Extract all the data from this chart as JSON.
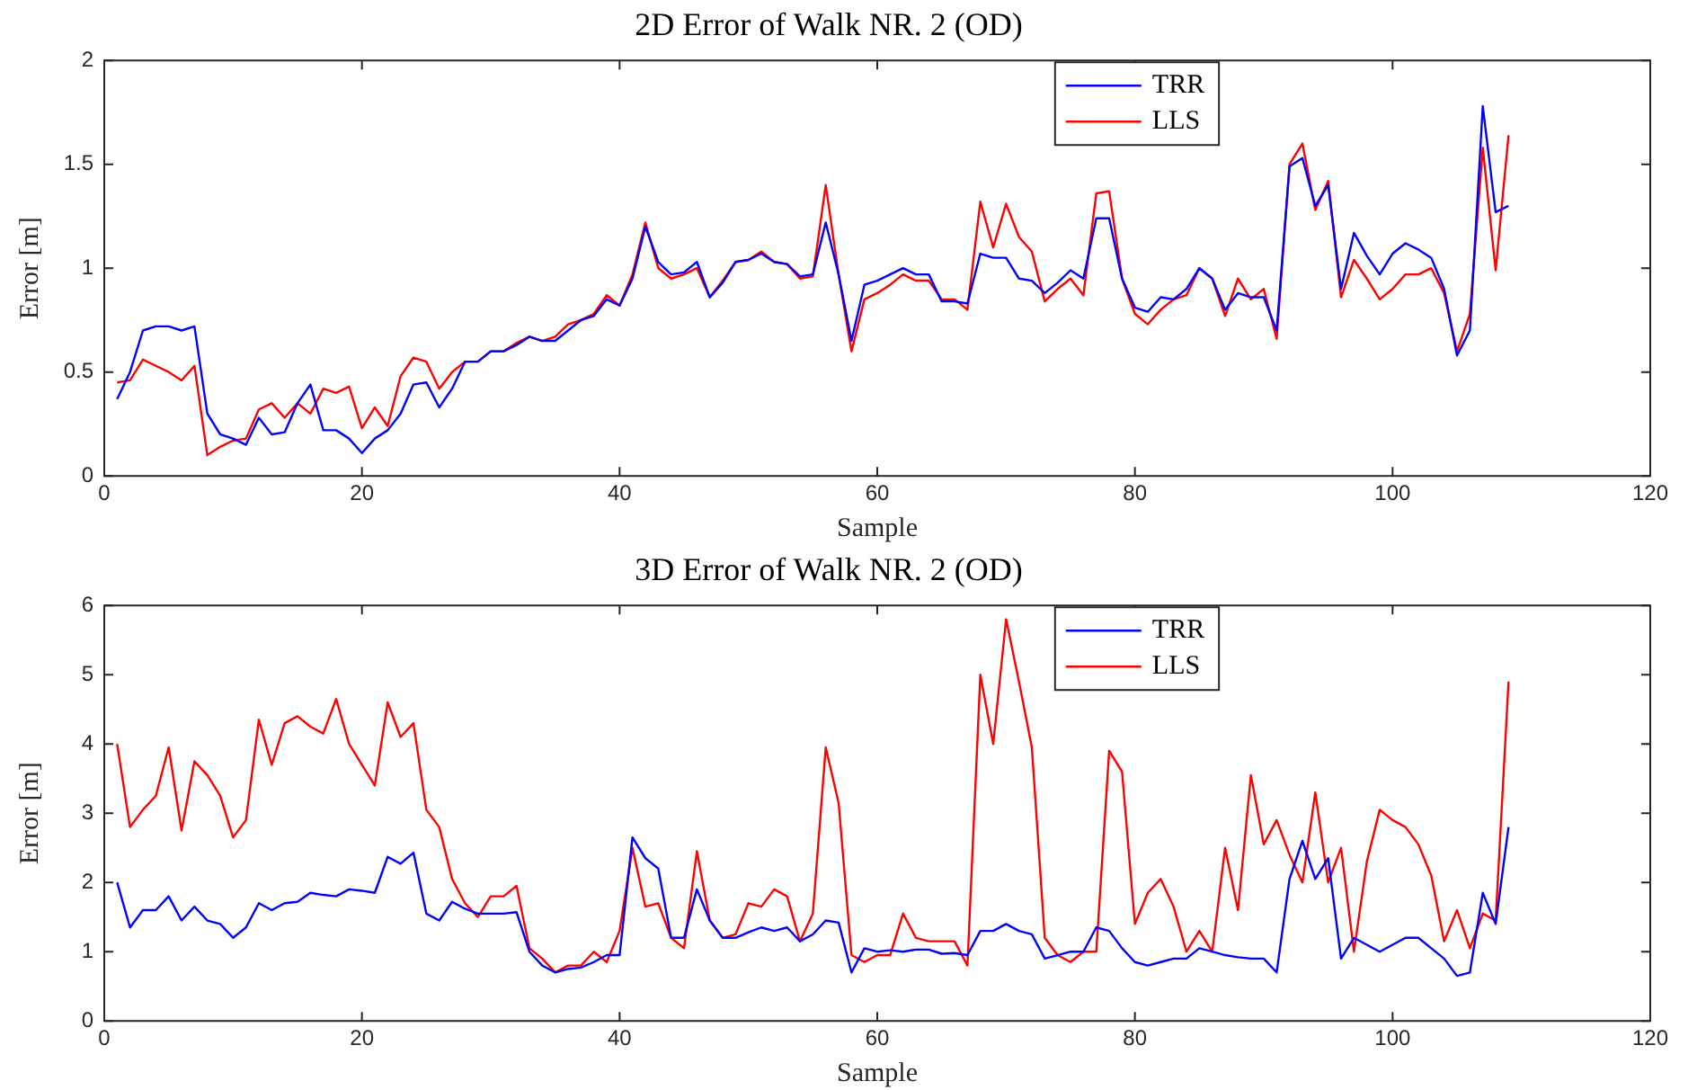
{
  "chart_data": [
    {
      "type": "line",
      "title": "2D Error of Walk NR. 2 (OD)",
      "xlabel": "Sample",
      "ylabel": "Error [m]",
      "xlim": [
        0,
        120
      ],
      "xticks": [
        0,
        20,
        40,
        60,
        80,
        100,
        120
      ],
      "ylim": [
        0,
        2
      ],
      "yticks": [
        0,
        0.5,
        1,
        1.5,
        2
      ],
      "grid": false,
      "legend": "top",
      "marker": "none",
      "line_style": "solid",
      "x": [
        1,
        2,
        3,
        4,
        5,
        6,
        7,
        8,
        9,
        10,
        11,
        12,
        13,
        14,
        15,
        16,
        17,
        18,
        19,
        20,
        21,
        22,
        23,
        24,
        25,
        26,
        27,
        28,
        29,
        30,
        31,
        32,
        33,
        34,
        35,
        36,
        37,
        38,
        39,
        40,
        41,
        42,
        43,
        44,
        45,
        46,
        47,
        48,
        49,
        50,
        51,
        52,
        53,
        54,
        55,
        56,
        57,
        58,
        59,
        60,
        61,
        62,
        63,
        64,
        65,
        66,
        67,
        68,
        69,
        70,
        71,
        72,
        73,
        74,
        75,
        76,
        77,
        78,
        79,
        80,
        81,
        82,
        83,
        84,
        85,
        86,
        87,
        88,
        89,
        90,
        91,
        92,
        93,
        94,
        95,
        96,
        97,
        98,
        99,
        100,
        101,
        102,
        103,
        104,
        105,
        106,
        107,
        108,
        109
      ],
      "series": [
        {
          "name": "TRR",
          "color": "#0000ff",
          "values": [
            0.37,
            0.5,
            0.7,
            0.72,
            0.72,
            0.7,
            0.72,
            0.3,
            0.2,
            0.18,
            0.15,
            0.28,
            0.2,
            0.21,
            0.35,
            0.44,
            0.22,
            0.22,
            0.18,
            0.11,
            0.18,
            0.22,
            0.3,
            0.44,
            0.45,
            0.33,
            0.42,
            0.55,
            0.55,
            0.6,
            0.6,
            0.63,
            0.67,
            0.65,
            0.65,
            0.7,
            0.75,
            0.77,
            0.85,
            0.82,
            0.95,
            1.2,
            1.03,
            0.97,
            0.98,
            1.03,
            0.86,
            0.93,
            1.03,
            1.04,
            1.07,
            1.03,
            1.02,
            0.96,
            0.97,
            1.22,
            0.97,
            0.65,
            0.92,
            0.94,
            0.97,
            1.0,
            0.97,
            0.97,
            0.84,
            0.84,
            0.83,
            1.07,
            1.05,
            1.05,
            0.95,
            0.94,
            0.88,
            0.93,
            0.99,
            0.95,
            1.24,
            1.24,
            0.95,
            0.81,
            0.79,
            0.86,
            0.85,
            0.9,
            1.0,
            0.95,
            0.8,
            0.88,
            0.86,
            0.86,
            0.7,
            1.49,
            1.53,
            1.3,
            1.4,
            0.9,
            1.17,
            1.06,
            0.97,
            1.07,
            1.12,
            1.09,
            1.05,
            0.9,
            0.58,
            0.7,
            1.78,
            1.27,
            1.3
          ]
        },
        {
          "name": "LLS",
          "color": "#ff0000",
          "values": [
            0.45,
            0.46,
            0.56,
            0.53,
            0.5,
            0.46,
            0.53,
            0.1,
            0.14,
            0.17,
            0.18,
            0.32,
            0.35,
            0.28,
            0.35,
            0.3,
            0.42,
            0.4,
            0.43,
            0.23,
            0.33,
            0.24,
            0.48,
            0.57,
            0.55,
            0.42,
            0.5,
            0.55,
            0.55,
            0.6,
            0.6,
            0.64,
            0.67,
            0.65,
            0.67,
            0.73,
            0.75,
            0.78,
            0.87,
            0.82,
            0.97,
            1.22,
            1.0,
            0.95,
            0.97,
            1.0,
            0.86,
            0.94,
            1.03,
            1.04,
            1.08,
            1.03,
            1.02,
            0.95,
            0.96,
            1.4,
            0.97,
            0.6,
            0.85,
            0.88,
            0.92,
            0.97,
            0.94,
            0.94,
            0.85,
            0.85,
            0.8,
            1.32,
            1.1,
            1.31,
            1.15,
            1.08,
            0.84,
            0.9,
            0.95,
            0.87,
            1.36,
            1.37,
            0.95,
            0.78,
            0.73,
            0.8,
            0.85,
            0.87,
            1.0,
            0.95,
            0.77,
            0.95,
            0.85,
            0.9,
            0.66,
            1.5,
            1.6,
            1.28,
            1.42,
            0.86,
            1.04,
            0.95,
            0.85,
            0.9,
            0.97,
            0.97,
            1.0,
            0.88,
            0.6,
            0.78,
            1.58,
            0.99,
            1.64
          ]
        }
      ]
    },
    {
      "type": "line",
      "title": "3D Error of Walk NR. 2 (OD)",
      "xlabel": "Sample",
      "ylabel": "Error [m]",
      "xlim": [
        0,
        120
      ],
      "xticks": [
        0,
        20,
        40,
        60,
        80,
        100,
        120
      ],
      "ylim": [
        0,
        6
      ],
      "yticks": [
        0,
        1,
        2,
        3,
        4,
        5,
        6
      ],
      "grid": false,
      "legend": "top",
      "marker": "none",
      "line_style": "solid",
      "x": [
        1,
        2,
        3,
        4,
        5,
        6,
        7,
        8,
        9,
        10,
        11,
        12,
        13,
        14,
        15,
        16,
        17,
        18,
        19,
        20,
        21,
        22,
        23,
        24,
        25,
        26,
        27,
        28,
        29,
        30,
        31,
        32,
        33,
        34,
        35,
        36,
        37,
        38,
        39,
        40,
        41,
        42,
        43,
        44,
        45,
        46,
        47,
        48,
        49,
        50,
        51,
        52,
        53,
        54,
        55,
        56,
        57,
        58,
        59,
        60,
        61,
        62,
        63,
        64,
        65,
        66,
        67,
        68,
        69,
        70,
        71,
        72,
        73,
        74,
        75,
        76,
        77,
        78,
        79,
        80,
        81,
        82,
        83,
        84,
        85,
        86,
        87,
        88,
        89,
        90,
        91,
        92,
        93,
        94,
        95,
        96,
        97,
        98,
        99,
        100,
        101,
        102,
        103,
        104,
        105,
        106,
        107,
        108,
        109
      ],
      "series": [
        {
          "name": "TRR",
          "color": "#0000ff",
          "values": [
            2.0,
            1.35,
            1.6,
            1.6,
            1.8,
            1.45,
            1.65,
            1.45,
            1.4,
            1.2,
            1.35,
            1.7,
            1.6,
            1.7,
            1.72,
            1.85,
            1.82,
            1.8,
            1.9,
            1.88,
            1.85,
            2.37,
            2.27,
            2.43,
            1.55,
            1.45,
            1.72,
            1.62,
            1.55,
            1.55,
            1.55,
            1.57,
            1.0,
            0.8,
            0.7,
            0.75,
            0.77,
            0.85,
            0.95,
            0.95,
            2.65,
            2.35,
            2.2,
            1.2,
            1.2,
            1.9,
            1.45,
            1.2,
            1.2,
            1.28,
            1.35,
            1.3,
            1.35,
            1.15,
            1.25,
            1.45,
            1.42,
            0.7,
            1.05,
            1.0,
            1.02,
            1.0,
            1.03,
            1.03,
            0.97,
            0.98,
            0.95,
            1.3,
            1.3,
            1.4,
            1.3,
            1.25,
            0.9,
            0.95,
            1.0,
            1.0,
            1.35,
            1.3,
            1.05,
            0.85,
            0.8,
            0.85,
            0.9,
            0.9,
            1.05,
            1.0,
            0.95,
            0.92,
            0.9,
            0.9,
            0.7,
            2.05,
            2.6,
            2.05,
            2.35,
            0.9,
            1.2,
            1.1,
            1.0,
            1.1,
            1.2,
            1.2,
            1.05,
            0.9,
            0.65,
            0.7,
            1.85,
            1.4,
            2.8
          ]
        },
        {
          "name": "LLS",
          "color": "#ff0000",
          "values": [
            4.0,
            2.8,
            3.05,
            3.25,
            3.95,
            2.75,
            3.75,
            3.55,
            3.25,
            2.65,
            2.9,
            4.35,
            3.7,
            4.3,
            4.4,
            4.25,
            4.15,
            4.65,
            4.0,
            3.7,
            3.4,
            4.6,
            4.1,
            4.3,
            3.05,
            2.8,
            2.05,
            1.7,
            1.5,
            1.8,
            1.8,
            1.95,
            1.05,
            0.9,
            0.7,
            0.8,
            0.8,
            1.0,
            0.85,
            1.3,
            2.5,
            1.65,
            1.7,
            1.2,
            1.05,
            2.45,
            1.45,
            1.2,
            1.25,
            1.7,
            1.65,
            1.9,
            1.8,
            1.15,
            1.55,
            3.95,
            3.15,
            0.95,
            0.85,
            0.95,
            0.95,
            1.55,
            1.2,
            1.15,
            1.15,
            1.15,
            0.8,
            5.0,
            4.0,
            5.8,
            4.9,
            3.95,
            1.2,
            0.95,
            0.85,
            1.0,
            1.0,
            3.9,
            3.6,
            1.4,
            1.85,
            2.05,
            1.65,
            1.0,
            1.3,
            1.0,
            2.5,
            1.6,
            3.55,
            2.55,
            2.9,
            2.4,
            2.0,
            3.3,
            2.0,
            2.5,
            1.0,
            2.3,
            3.05,
            2.9,
            2.8,
            2.55,
            2.1,
            1.15,
            1.6,
            1.05,
            1.55,
            1.45,
            4.9
          ]
        }
      ]
    }
  ]
}
